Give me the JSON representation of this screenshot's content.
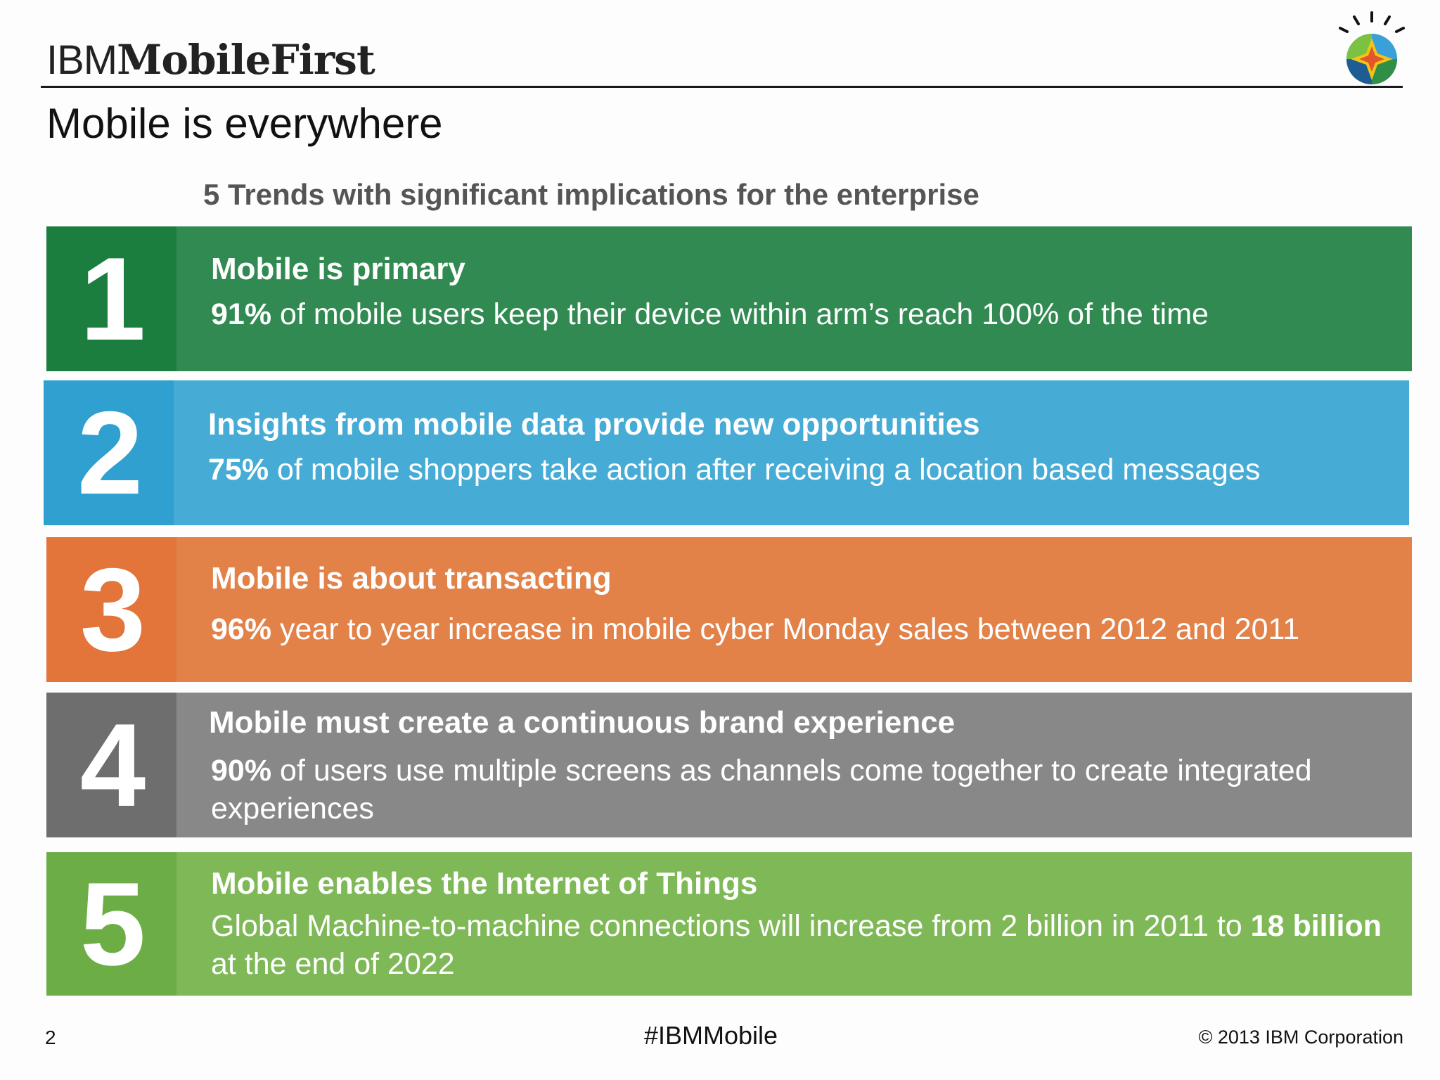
{
  "header": {
    "brand_prefix": "IBM",
    "brand_name": "MobileFirst",
    "title": "Mobile is everywhere",
    "subtitle": "5 Trends with significant implications for the enterprise"
  },
  "trends": [
    {
      "number": "1",
      "heading": "Mobile is primary",
      "stat_bold": "91%",
      "stat_text": " of mobile users keep their device within arm’s reach 100% of the time",
      "stat_bold_2": "",
      "stat_text_2": ""
    },
    {
      "number": "2",
      "heading": "Insights from mobile data provide new opportunities",
      "stat_bold": "75%",
      "stat_text": " of mobile shoppers take action after receiving a location based messages",
      "stat_bold_2": "",
      "stat_text_2": ""
    },
    {
      "number": "3",
      "heading": "Mobile is about transacting",
      "stat_bold": "96%",
      "stat_text": " year to year increase in mobile cyber Monday sales between 2012 and 2011",
      "stat_bold_2": "",
      "stat_text_2": ""
    },
    {
      "number": "4",
      "heading": "Mobile must create a continuous brand experience",
      "stat_bold": "90%",
      "stat_text": " of users use multiple screens as channels come together to create integrated experiences",
      "stat_bold_2": "",
      "stat_text_2": ""
    },
    {
      "number": "5",
      "heading": "Mobile enables the Internet of Things",
      "stat_bold": "",
      "stat_text": "Global Machine-to-machine connections will increase from 2 billion in 2011 to ",
      "stat_bold_2": "18 billion",
      "stat_text_2": " at the end of 2022"
    }
  ],
  "footer": {
    "page_number": "2",
    "hashtag": "#IBMMobile",
    "copyright": "© 2013 IBM Corporation"
  },
  "colors": {
    "trend1": "#318a51",
    "trend2": "#46acd6",
    "trend3": "#e28249",
    "trend4": "#888888",
    "trend5": "#7fb857"
  },
  "icons": {
    "logo": "ibm-smarter-planet-logo-icon"
  }
}
